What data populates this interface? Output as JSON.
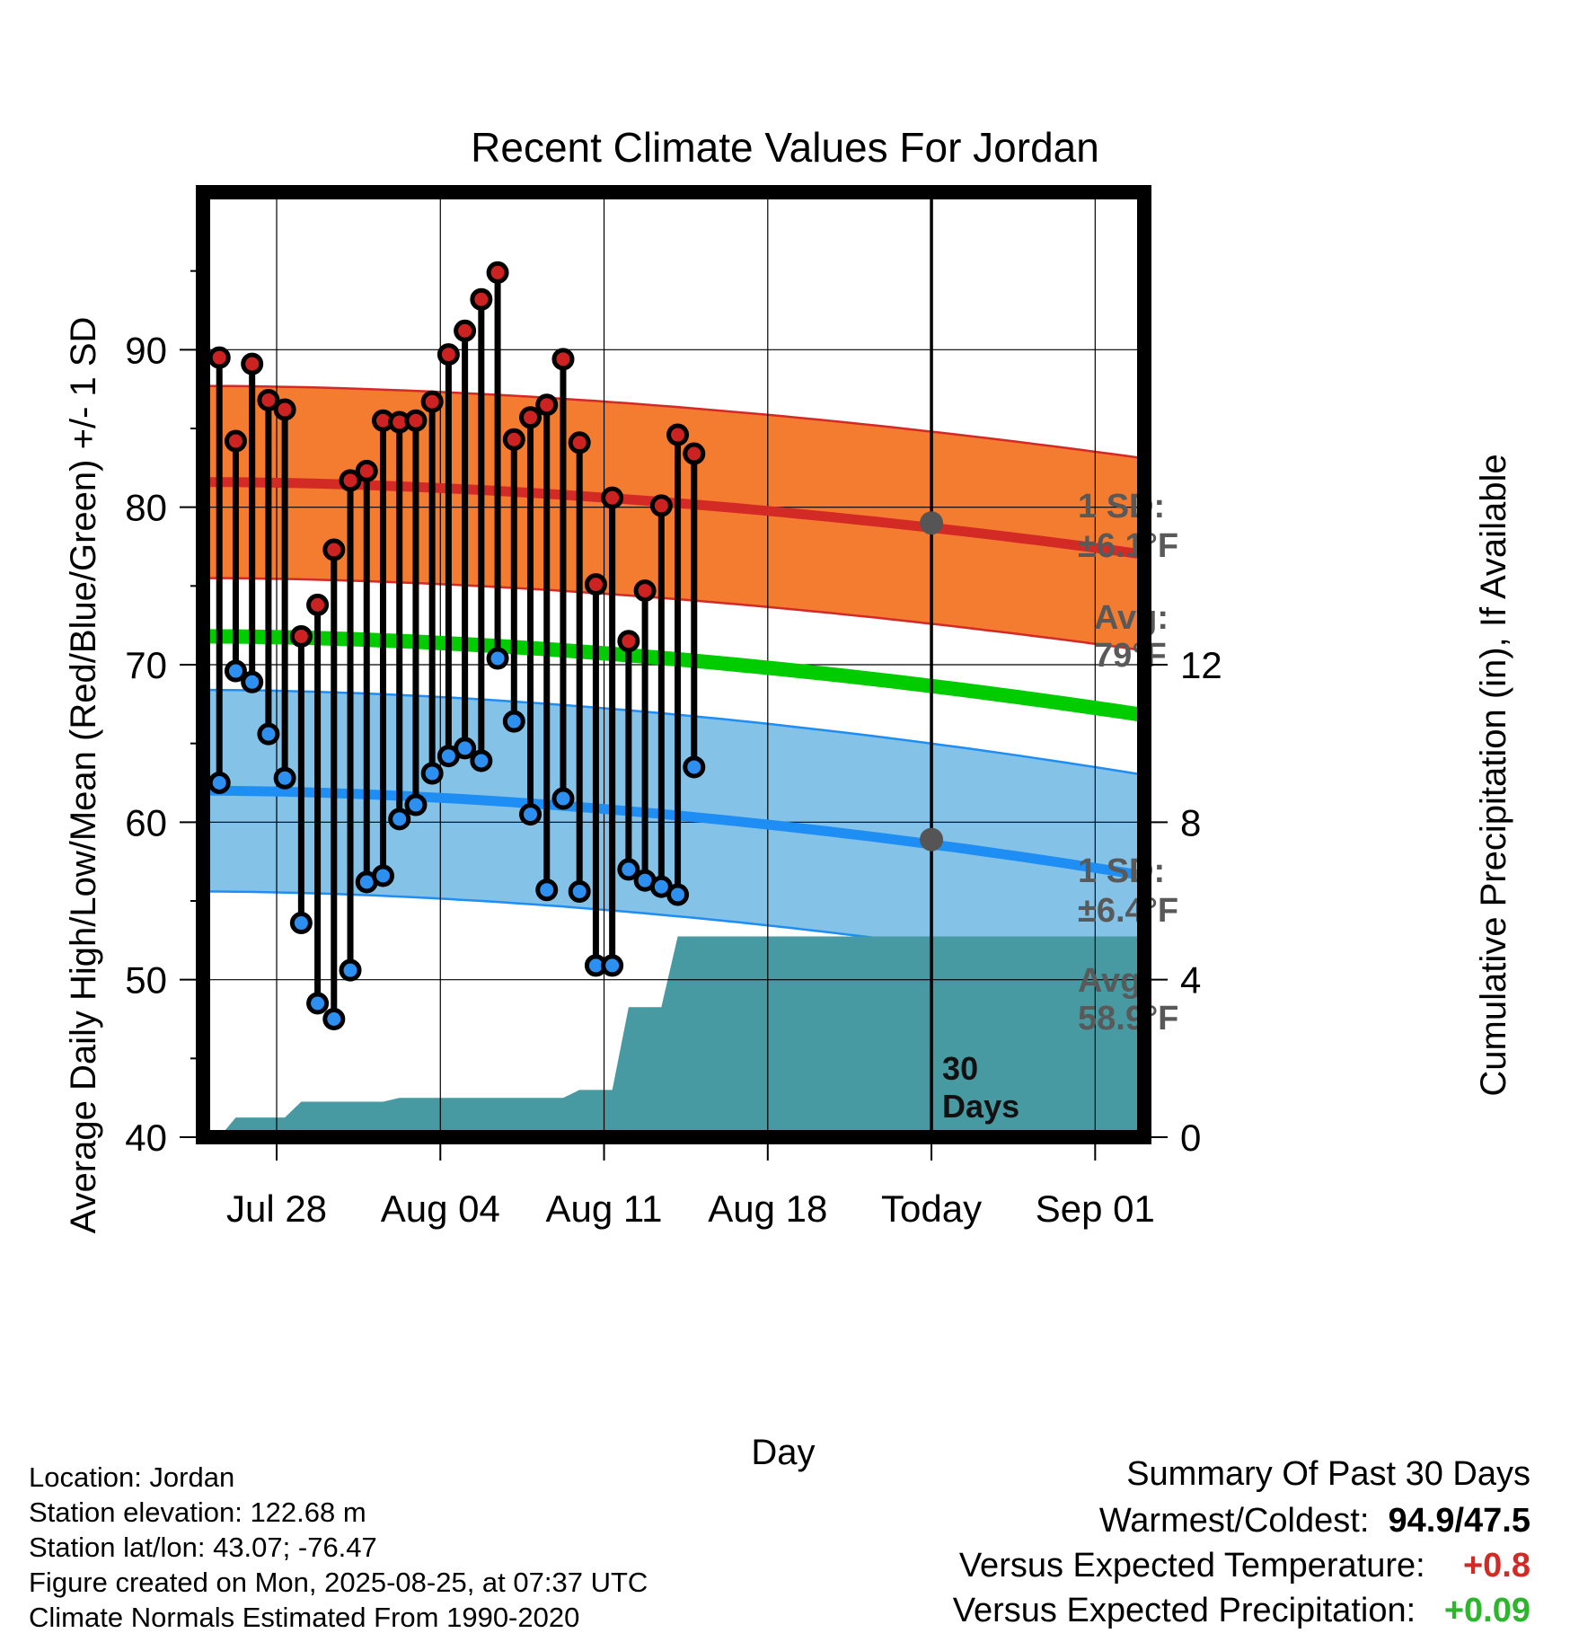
{
  "chart_data": {
    "type": "line",
    "title": "Recent Climate Values For Jordan",
    "xlabel": "Day",
    "ylabel": "Average Daily High/Low/Mean (Red/Blue/Green) +/- 1 SD",
    "y2label": "Cumulative Precipitation (in), If Available",
    "ylim": [
      40,
      100
    ],
    "y2lim": [
      0,
      24
    ],
    "y_ticks": [
      "40",
      "50",
      "60",
      "70",
      "80",
      "90"
    ],
    "y2_ticks": [
      "0",
      "4",
      "8",
      "12"
    ],
    "x_range_days": [
      -28.5,
      29
    ],
    "x_ticks": [
      {
        "day": -24,
        "label": "Jul 28"
      },
      {
        "day": -14,
        "label": "Aug 04"
      },
      {
        "day": -4,
        "label": "Aug 11"
      },
      {
        "day": 6,
        "label": "Aug 18"
      },
      {
        "day": 16,
        "label": "Today"
      },
      {
        "day": 26,
        "label": "Sep 01"
      }
    ],
    "today_day": 16,
    "today_label_text": "30\nDays",
    "daily_high": [
      89.5,
      84.2,
      89.1,
      86.8,
      86.2,
      71.8,
      73.8,
      77.3,
      81.7,
      82.3,
      85.5,
      85.4,
      85.5,
      86.7,
      89.7,
      91.2,
      93.2,
      94.9,
      84.3,
      85.7,
      86.5,
      89.4,
      84.1,
      75.1,
      80.6,
      71.5,
      74.7,
      80.1,
      84.6,
      83.4
    ],
    "daily_low": [
      62.5,
      69.6,
      68.9,
      65.6,
      62.8,
      53.6,
      48.5,
      47.5,
      50.6,
      56.2,
      56.6,
      60.2,
      61.1,
      63.1,
      64.2,
      64.7,
      63.9,
      70.4,
      66.4,
      60.5,
      55.7,
      61.5,
      55.6,
      50.9,
      50.9,
      57.0,
      56.3,
      55.9,
      55.4,
      63.5
    ],
    "normal_high": {
      "start": 81.6,
      "end": 77.0,
      "today": 79.0
    },
    "normal_high_sd": 6.1,
    "normal_low": {
      "start": 62.0,
      "end": 56.6,
      "today": 58.9
    },
    "normal_low_sd": 6.4,
    "normal_mean": {
      "start": 71.8,
      "end": 66.8
    },
    "precip_cumulative": [
      0,
      0.5,
      0.5,
      0.5,
      0.5,
      0.9,
      0.9,
      0.9,
      0.9,
      0.9,
      0.9,
      1.0,
      1.0,
      1.0,
      1.0,
      1.0,
      1.0,
      1.0,
      1.0,
      1.0,
      1.0,
      1.0,
      1.2,
      1.2,
      1.2,
      3.3,
      3.3,
      3.3,
      5.1,
      5.1
    ],
    "series": [
      {
        "name": "Red",
        "color": "#cc2222"
      },
      {
        "name": "Blue",
        "color": "#1e90ff"
      },
      {
        "name": "Green",
        "color": "#00cc00"
      }
    ],
    "annotations": {
      "high_sd_label": "1 SD:",
      "high_sd_value": "±6.1°F",
      "high_avg_label": "Avg:",
      "high_avg_value": "79°F",
      "low_sd_label": "1 SD:",
      "low_sd_value": "±6.4°F",
      "low_avg_label": "Avg:",
      "low_avg_value": "58.9°F"
    },
    "grid": true
  },
  "colors": {
    "high_band": "#f47c30",
    "high_line": "#d42a26",
    "low_band": "#84c2e8",
    "low_line": "#1e8ef5",
    "mean_line": "#00cc00",
    "precip_fill": "#479aa2",
    "high_marker": "#cc2222",
    "low_marker": "#2d8ff0",
    "today_marker": "#555555",
    "positive_temp": "#d42a26",
    "positive_precip": "#2db52d"
  },
  "info": {
    "location": "Location: Jordan",
    "elevation": "Station elevation: 122.68 m",
    "latlon": "Station lat/lon: 43.07; -76.47",
    "created": "Figure created on Mon, 2025-08-25, at 07:37 UTC",
    "normals": "Climate Normals Estimated From 1990-2020"
  },
  "summary": {
    "heading": "Summary Of Past 30 Days",
    "warm_cold_label": "Warmest/Coldest:",
    "warm_cold_value": "94.9/47.5",
    "temp_label": "Versus Expected Temperature:",
    "temp_value": "+0.8",
    "precip_label": "Versus Expected Precipitation:",
    "precip_value": "+0.09"
  }
}
